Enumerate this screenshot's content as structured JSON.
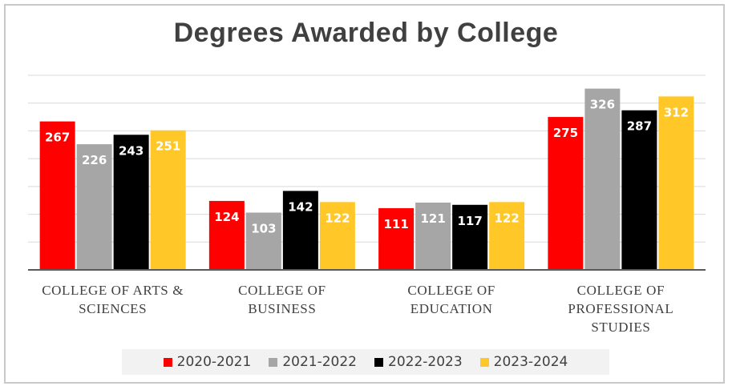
{
  "chart_data": {
    "type": "bar",
    "title": "Degrees Awarded by College",
    "categories": [
      [
        "COLLEGE OF ARTS &",
        "SCIENCES"
      ],
      [
        "COLLEGE OF",
        "BUSINESS"
      ],
      [
        "COLLEGE OF",
        "EDUCATION"
      ],
      [
        "COLLEGE OF",
        "PROFESSIONAL",
        "STUDIES"
      ]
    ],
    "series": [
      {
        "name": "2020-2021",
        "color": "#ff0000",
        "label_color": "#ffffff",
        "values": [
          267,
          124,
          111,
          275
        ]
      },
      {
        "name": "2021-2022",
        "color": "#a6a6a6",
        "label_color": "#ffffff",
        "values": [
          226,
          103,
          121,
          326
        ]
      },
      {
        "name": "2022-2023",
        "color": "#000000",
        "label_color": "#ffffff",
        "values": [
          243,
          142,
          117,
          287
        ]
      },
      {
        "name": "2023-2024",
        "color": "#ffc828",
        "label_color": "#ffffff",
        "values": [
          251,
          122,
          122,
          312
        ]
      }
    ],
    "ylim": [
      0,
      350
    ],
    "grid": true,
    "legend": "bottom",
    "data_labels": "inside-top"
  }
}
